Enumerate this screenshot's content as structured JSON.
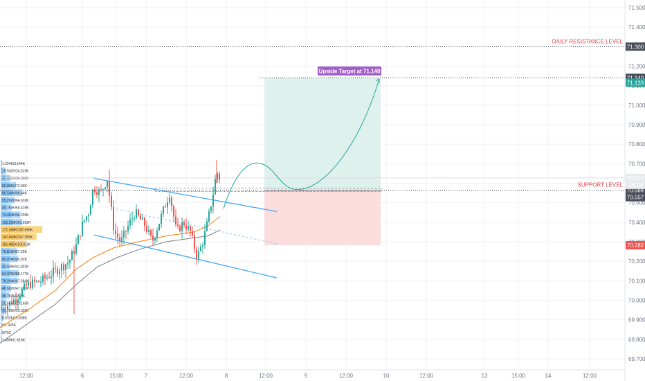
{
  "chart_data": {
    "type": "candlestick",
    "price_axis": {
      "ticks": [
        "71.500",
        "71.400",
        "71.300",
        "71.200",
        "71.100",
        "71.000",
        "70.900",
        "70.800",
        "70.700",
        "70.600",
        "70.500",
        "70.400",
        "70.300",
        "70.200",
        "70.100",
        "70.000",
        "69.900",
        "69.800",
        "69.700"
      ],
      "tick_values": [
        71.5,
        71.4,
        71.3,
        71.2,
        71.1,
        71.0,
        70.9,
        70.8,
        70.7,
        70.6,
        70.5,
        70.4,
        70.3,
        70.2,
        70.1,
        70.0,
        69.9,
        69.8,
        69.7
      ],
      "range": [
        69.67,
        71.53
      ]
    },
    "time_axis": {
      "ticks": [
        "12:00",
        "6",
        "15:00",
        "7",
        "12:00",
        "8",
        "12:00",
        "9",
        "12:00",
        "10",
        "12:00",
        "13",
        "15:00",
        "14",
        "12:00"
      ]
    },
    "levels": [
      {
        "label": "DAILY RESISTANCE LEVEL",
        "price": 71.3,
        "tag": "71.300",
        "color": "#e0434d",
        "tag_color": "#4a4e5a"
      },
      {
        "label": "SUPPORT LEVEL",
        "price": 70.564,
        "tag": "70.564",
        "color": "#e0434d",
        "tag_color": "#4a4e5a"
      }
    ],
    "price_tags": [
      {
        "price": 71.14,
        "text": "71.140",
        "color": "#4a4e5a"
      },
      {
        "price": 71.133,
        "text": "71.133",
        "color": "#26a69a"
      },
      {
        "price": 70.627,
        "text": "70.627",
        "color": "#e9eaee",
        "text_color": "#1d2030",
        "sub": "16:18"
      },
      {
        "price": 70.557,
        "text": "70.557",
        "color": "#4a4e5a"
      },
      {
        "price": 70.282,
        "text": "70.282",
        "color": "#ef5350"
      }
    ],
    "annotation": "Upside Target at 71.140",
    "trade": {
      "entry": 70.564,
      "target": 71.14,
      "stop": 70.282
    },
    "volume_profile": [
      "1.224K/3.144K",
      "19.502K/24.519K",
      "45.633K/34.306K",
      "55.855K/73.93K",
      "86.549K/96.44K",
      "55.262K/64.632K",
      "40.753K/50.415K",
      "73.464K/94.225K",
      "103.399K/81.692K",
      "171.368K/197.696K",
      "147.843K/157.355K",
      "116.485K/100.51K",
      "70.819K/67.25K",
      "80.074K/65.91K",
      "34.546K/41.822K",
      "64.375K/88.177K",
      "76.264K/67.561K",
      "40.602K/47.282K",
      "48.783K/25.5K",
      "25.552K/23.163K",
      "19.285K/29.302K",
      "8.632K/15.668K",
      "0/1.925K",
      "0/753",
      "1.409K/1.616K"
    ],
    "colors": {
      "up": "#26a69a",
      "down": "#ef5350",
      "channel": "#42a5f5",
      "ma_fast": "#f57c00",
      "ma_slow": "#787b86",
      "target_zone": "#d8eeea",
      "stop_zone": "#fbd9d9",
      "annotation": "#a35ec9"
    }
  }
}
